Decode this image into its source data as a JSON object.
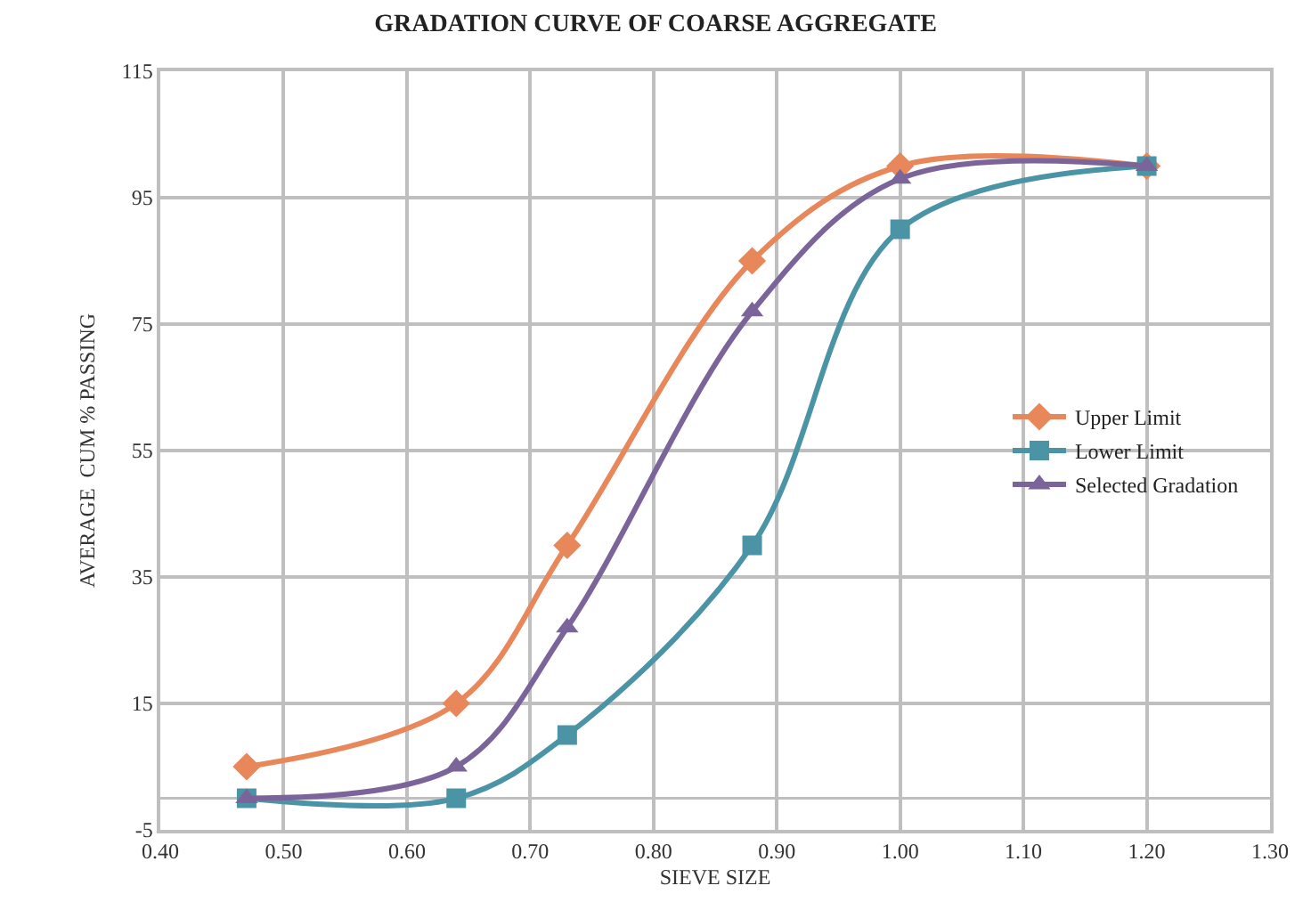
{
  "chart_data": {
    "type": "line",
    "title": "GRADATION CURVE OF COARSE AGGREGATE",
    "xlabel": "SIEVE SIZE",
    "ylabel": "AVERAGE  CUM % PASSING",
    "x": [
      0.47,
      0.64,
      0.73,
      0.88,
      1.0,
      1.2
    ],
    "series": [
      {
        "name": "Upper Limit",
        "color": "#e8875a",
        "marker": "diamond",
        "values": [
          5,
          15,
          40,
          85,
          100,
          100
        ]
      },
      {
        "name": "Lower Limit",
        "color": "#4b94a6",
        "marker": "square",
        "values": [
          0,
          0,
          10,
          40,
          90,
          100
        ]
      },
      {
        "name": "Selected Gradation",
        "color": "#7a6499",
        "marker": "triangle",
        "values": [
          0,
          5,
          27,
          77,
          98,
          100
        ]
      }
    ],
    "xlim": [
      0.4,
      1.3
    ],
    "xticks": [
      {
        "value": 0.4,
        "label": "0.40"
      },
      {
        "value": 0.5,
        "label": "0.50"
      },
      {
        "value": 0.6,
        "label": "0.60"
      },
      {
        "value": 0.7,
        "label": "0.70"
      },
      {
        "value": 0.8,
        "label": "0.80"
      },
      {
        "value": 0.9,
        "label": "0.90"
      },
      {
        "value": 1.0,
        "label": "1.00"
      },
      {
        "value": 1.1,
        "label": "1.10"
      },
      {
        "value": 1.2,
        "label": "1.20"
      },
      {
        "value": 1.3,
        "label": "1.30"
      }
    ],
    "ylim": [
      -5,
      115
    ],
    "yticks": [
      -5,
      15,
      35,
      55,
      75,
      95,
      115
    ],
    "ref_lines": [
      {
        "axis": "y",
        "value": 0,
        "color": "#bfbfbf"
      }
    ],
    "grid": true,
    "legend": "right",
    "line_style": "solid"
  }
}
